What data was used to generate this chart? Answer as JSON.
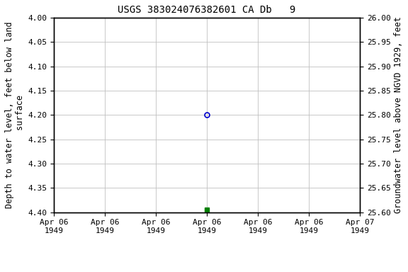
{
  "title": "USGS 383024076382601 CA Db   9",
  "ylabel_left": "Depth to water level, feet below land\n surface",
  "ylabel_right": "Groundwater level above NGVD 1929, feet",
  "ylim_left": [
    4.4,
    4.0
  ],
  "ylim_right": [
    25.6,
    26.0
  ],
  "yticks_left": [
    4.0,
    4.05,
    4.1,
    4.15,
    4.2,
    4.25,
    4.3,
    4.35,
    4.4
  ],
  "yticks_right": [
    26.0,
    25.95,
    25.9,
    25.85,
    25.8,
    25.75,
    25.7,
    25.65,
    25.6
  ],
  "xtick_labels": [
    "Apr 06\n1949",
    "Apr 06\n1949",
    "Apr 06\n1949",
    "Apr 06\n1949",
    "Apr 06\n1949",
    "Apr 06\n1949",
    "Apr 07\n1949"
  ],
  "xlim": [
    0,
    6
  ],
  "xtick_positions": [
    0,
    1,
    2,
    3,
    4,
    5,
    6
  ],
  "data_point_x": 3,
  "data_point_y": 4.2,
  "data_point_color": "#0000cc",
  "data_point_marker": "o",
  "data_point_facecolor": "none",
  "data_point_size": 5,
  "green_marker_x": 3,
  "green_marker_y": 4.395,
  "green_marker_color": "#008000",
  "green_marker_size": 4,
  "legend_color": "#008000",
  "background_color": "#ffffff",
  "grid_color": "#c0c0c0",
  "font_family": "DejaVu Sans Mono",
  "title_fontsize": 10,
  "axis_label_fontsize": 8.5,
  "tick_fontsize": 8
}
